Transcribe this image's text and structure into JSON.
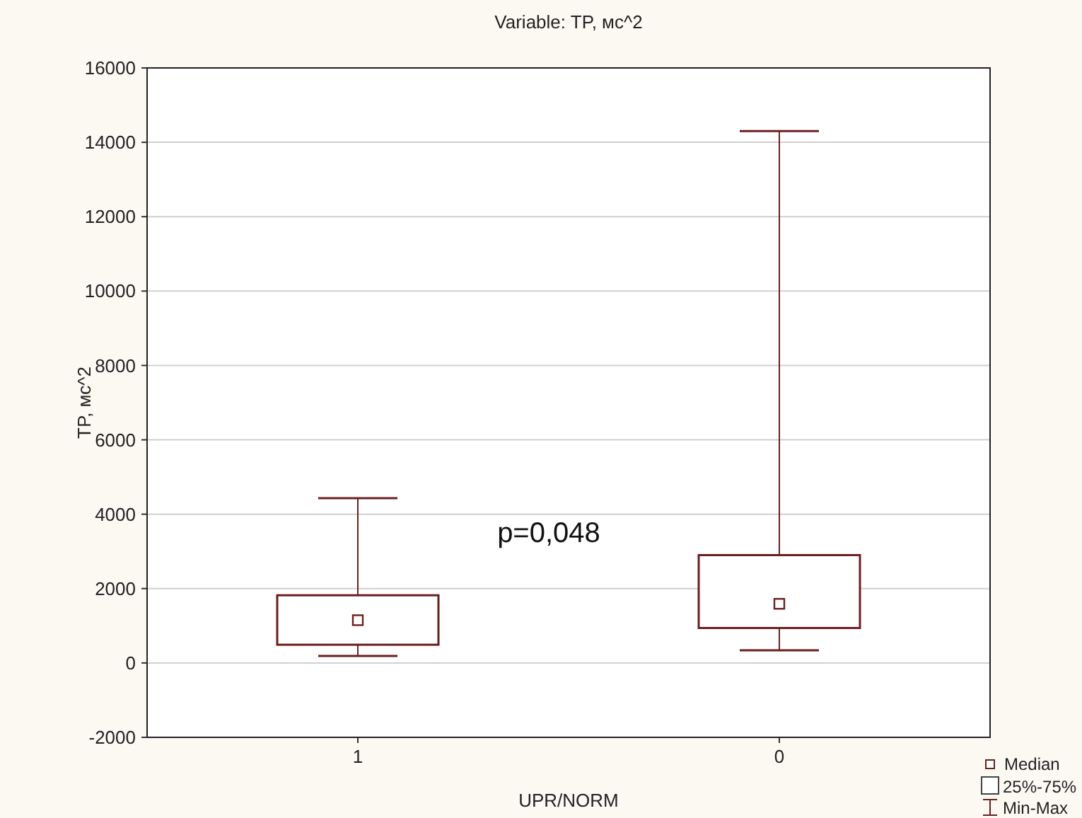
{
  "chart_data": {
    "type": "box",
    "title": "Variable: TP, мс^2",
    "xlabel": "UPR/NORM",
    "ylabel": "TP, мс^2",
    "categories": [
      "1",
      "0"
    ],
    "series": [
      {
        "color": "#6b1f1f",
        "boxes": [
          {
            "low": 190,
            "q1": 490,
            "median": 1150,
            "q3": 1820,
            "high": 4430
          },
          {
            "low": 340,
            "q1": 940,
            "median": 1590,
            "q3": 2900,
            "high": 14300
          }
        ]
      }
    ],
    "ylim": [
      -2000,
      16000
    ],
    "yticks": [
      -2000,
      0,
      2000,
      4000,
      6000,
      8000,
      10000,
      12000,
      14000,
      16000
    ],
    "grid": "y",
    "annotations": [
      "p=0,048",
      "Median",
      "25%-75%",
      "Min-Max"
    ]
  }
}
